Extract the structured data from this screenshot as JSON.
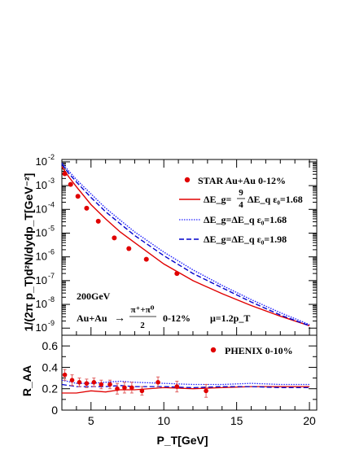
{
  "chart_data": [
    {
      "type": "line",
      "scale": "log",
      "ylabel": "1/(2π p_T)d²N/dydp_T[GeV⁻²]",
      "xlim": [
        3,
        20.5
      ],
      "ylim_log10": [
        -9.3,
        -1.9
      ],
      "y_tick_labels": [
        "10^-9",
        "10^-8",
        "10^-7",
        "10^-6",
        "10^-5",
        "10^-4",
        "10^-3",
        "10^-2"
      ],
      "y_tick_exps": [
        -9,
        -8,
        -7,
        -6,
        -5,
        -4,
        -3,
        -2
      ],
      "annotations": {
        "energy": "200GeV",
        "system": "Au+Au",
        "arrow": "→",
        "frac_num": "π⁺+π⁰",
        "frac_den": "2",
        "centrality": "0-12%",
        "scale": "μ=1.2p_T"
      },
      "legend": {
        "data_label": "STAR  Au+Au  0-12%",
        "l1": {
          "pre": "ΔE_g=",
          "num": "9",
          "den": "4",
          "post": "ΔE_q  ε₀=1.68"
        },
        "l2": "ΔE_g=ΔE_q  ε₀=1.68",
        "l3": "ΔE_g=ΔE_q  ε₀=1.98"
      },
      "data_points": {
        "name": "STAR Au+Au 0-12%",
        "x": [
          3.2,
          3.6,
          4.1,
          4.7,
          5.5,
          6.6,
          7.6,
          8.8,
          10.9
        ],
        "log10y": [
          -2.5,
          -2.95,
          -3.45,
          -3.95,
          -4.5,
          -5.2,
          -5.65,
          -6.1,
          -6.7
        ]
      },
      "series": [
        {
          "name": "ΔE_g=9/4ΔE_q ε0=1.68",
          "style": "solid",
          "color": "#e00000",
          "x": [
            3,
            3.5,
            4,
            5,
            6,
            7,
            8,
            10,
            12,
            14,
            16,
            18,
            20
          ],
          "log10y": [
            -2.2,
            -2.65,
            -3.05,
            -3.8,
            -4.4,
            -4.95,
            -5.4,
            -6.3,
            -7.0,
            -7.55,
            -8.05,
            -8.5,
            -8.9
          ]
        },
        {
          "name": "ΔE_g=ΔE_q ε0=1.68",
          "style": "dotted",
          "color": "#2020ff",
          "x": [
            3,
            3.5,
            4,
            5,
            6,
            7,
            8,
            10,
            12,
            14,
            16,
            18,
            20
          ],
          "log10y": [
            -2.05,
            -2.4,
            -2.75,
            -3.35,
            -3.95,
            -4.45,
            -4.95,
            -5.8,
            -6.55,
            -7.2,
            -7.8,
            -8.35,
            -8.85
          ]
        },
        {
          "name": "ΔE_g=ΔE_q ε0=1.98",
          "style": "dashed",
          "color": "#0000cc",
          "x": [
            3,
            3.5,
            4,
            5,
            6,
            7,
            8,
            10,
            12,
            14,
            16,
            18,
            20
          ],
          "log10y": [
            -2.1,
            -2.5,
            -2.85,
            -3.5,
            -4.1,
            -4.6,
            -5.1,
            -5.95,
            -6.7,
            -7.3,
            -7.9,
            -8.45,
            -8.9
          ]
        }
      ]
    },
    {
      "type": "line",
      "xlabel": "P_T[GeV]",
      "ylabel": "R_AA",
      "xlim": [
        3,
        20.5
      ],
      "ylim": [
        0,
        0.7
      ],
      "x_ticks": [
        5,
        10,
        15,
        20
      ],
      "y_ticks": [
        0,
        0.2,
        0.4,
        0.6
      ],
      "x_tick_labels": [
        "5",
        "10",
        "15",
        "20"
      ],
      "y_tick_labels": [
        "0",
        "0.2",
        "0.4",
        "0.6"
      ],
      "legend": {
        "data_label": "PHENIX  0-10%"
      },
      "data_points": {
        "name": "PHENIX 0-10%",
        "x": [
          3.2,
          3.7,
          4.2,
          4.7,
          5.2,
          5.7,
          6.3,
          6.8,
          7.3,
          7.8,
          8.5,
          9.6,
          10.9,
          12.9
        ],
        "y": [
          0.33,
          0.28,
          0.26,
          0.25,
          0.26,
          0.24,
          0.24,
          0.2,
          0.21,
          0.21,
          0.18,
          0.26,
          0.22,
          0.18
        ],
        "err": [
          0.05,
          0.05,
          0.04,
          0.04,
          0.04,
          0.04,
          0.04,
          0.05,
          0.05,
          0.05,
          0.04,
          0.05,
          0.05,
          0.06
        ]
      },
      "series": [
        {
          "name": "ΔE_g=9/4ΔE_q ε0=1.68",
          "style": "solid",
          "color": "#e00000",
          "x": [
            3,
            4,
            5,
            6,
            7,
            8,
            10,
            12,
            14,
            16,
            18,
            20
          ],
          "y": [
            0.16,
            0.16,
            0.18,
            0.17,
            0.19,
            0.19,
            0.21,
            0.2,
            0.21,
            0.22,
            0.22,
            0.22
          ]
        },
        {
          "name": "ΔE_g=ΔE_q ε0=1.68",
          "style": "dotted",
          "color": "#2020ff",
          "x": [
            3,
            4,
            5,
            6,
            7,
            8,
            10,
            12,
            14,
            16,
            18,
            20
          ],
          "y": [
            0.28,
            0.25,
            0.25,
            0.26,
            0.27,
            0.26,
            0.25,
            0.24,
            0.24,
            0.25,
            0.24,
            0.24
          ]
        },
        {
          "name": "ΔE_g=ΔE_q ε0=1.98",
          "style": "dashed",
          "color": "#0000cc",
          "x": [
            3,
            4,
            5,
            6,
            7,
            8,
            10,
            12,
            14,
            16,
            18,
            20
          ],
          "y": [
            0.24,
            0.22,
            0.22,
            0.22,
            0.23,
            0.22,
            0.22,
            0.21,
            0.22,
            0.22,
            0.21,
            0.21
          ]
        }
      ]
    }
  ]
}
